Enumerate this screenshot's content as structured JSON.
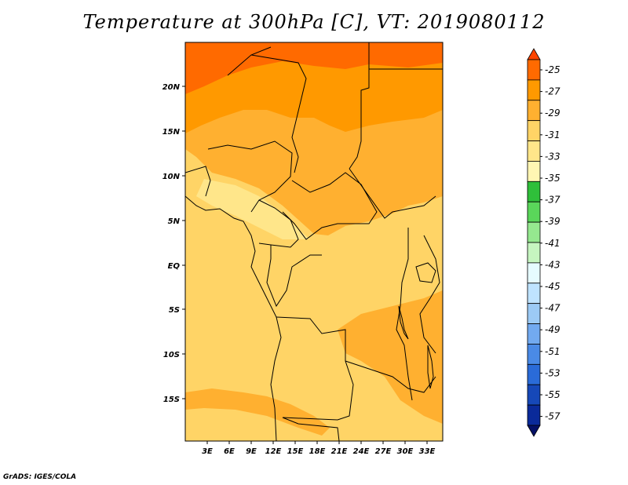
{
  "title": "Temperature at 300hPa [C], VT: 2019080112",
  "credit": "GrADS: IGES/COLA",
  "map": {
    "lon_labels": [
      "3E",
      "6E",
      "9E",
      "12E",
      "15E",
      "18E",
      "21E",
      "24E",
      "27E",
      "30E",
      "33E"
    ],
    "lat_labels": [
      "20N",
      "15N",
      "10N",
      "5N",
      "EQ",
      "5S",
      "10S",
      "15S"
    ]
  },
  "colorbar": {
    "labels": [
      "-25",
      "-27",
      "-29",
      "-31",
      "-33",
      "-35",
      "-37",
      "-39",
      "-41",
      "-43",
      "-45",
      "-47",
      "-49",
      "-51",
      "-53",
      "-55",
      "-57"
    ],
    "colors": [
      "#ff4500",
      "#ff6a00",
      "#ff9900",
      "#ffb030",
      "#ffd466",
      "#ffe68a",
      "#fff6b3",
      "#2fbf3a",
      "#5ad65a",
      "#95e88f",
      "#c6f5c0",
      "#e6fbff",
      "#bfe3ff",
      "#9ccaf5",
      "#72aaf0",
      "#4a8ae6",
      "#2a6bd8",
      "#1648b8",
      "#0a2a9a",
      "#041066"
    ]
  },
  "colors": {
    "t25": "#ff6a00",
    "t27": "#ff9900",
    "t29": "#ffb030",
    "t31": "#ffd466",
    "t33": "#ffe68a",
    "t35": "#fff6b3"
  }
}
